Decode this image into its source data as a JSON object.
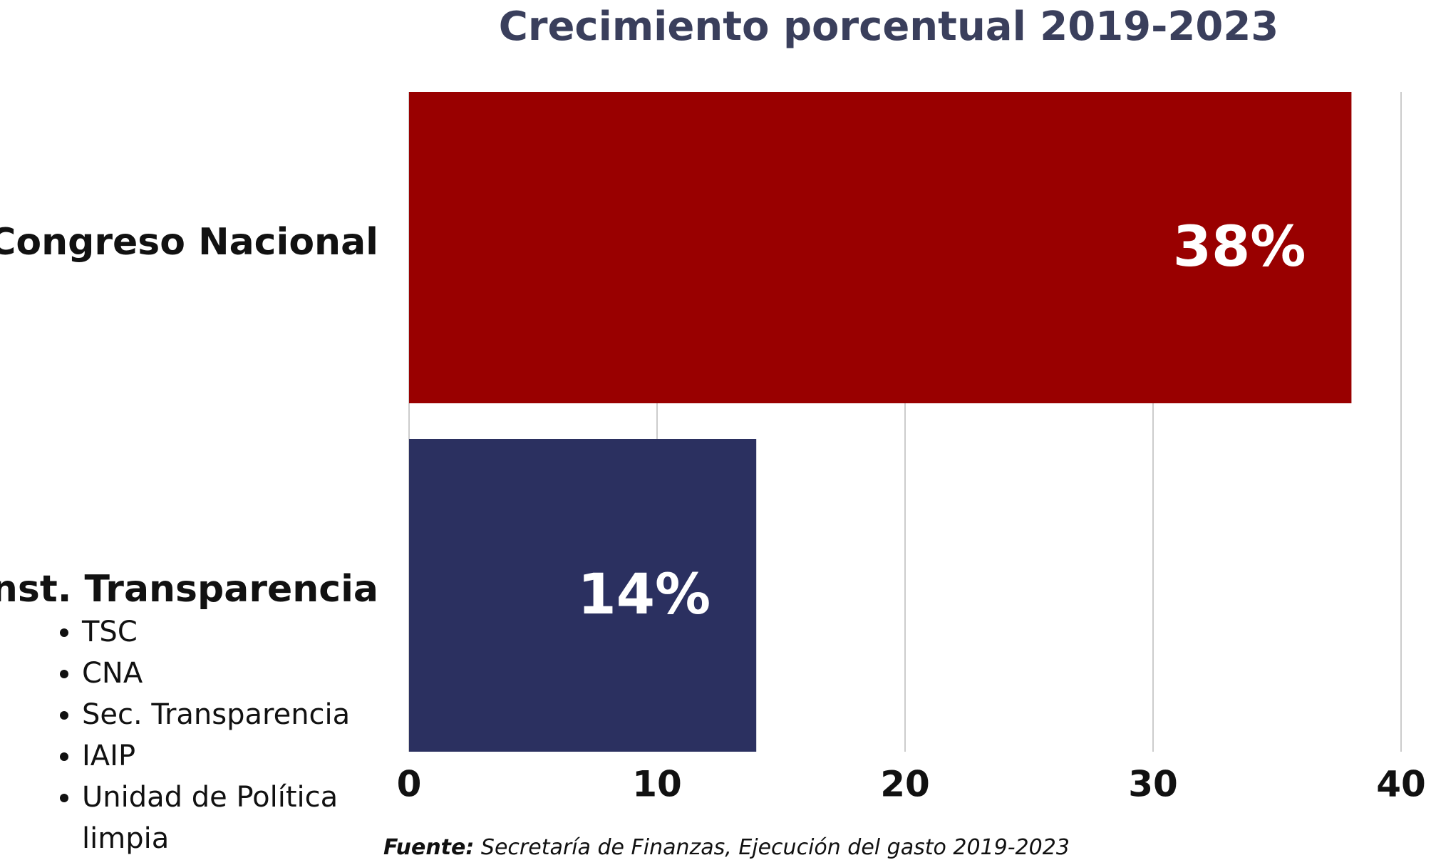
{
  "chart_data": {
    "type": "bar",
    "orientation": "horizontal",
    "title": "Crecimiento porcentual 2019-2023",
    "categories": [
      "Congreso Nacional",
      "Inst. Transparencia"
    ],
    "values": [
      38,
      14
    ],
    "value_labels": [
      "38%",
      "14%"
    ],
    "colors": [
      "#990000",
      "#2b3060"
    ],
    "xlim": [
      0,
      40
    ],
    "xticks": [
      0,
      10,
      20,
      30,
      40
    ],
    "grid": true
  },
  "list": [
    "TSC",
    "CNA",
    "Sec. Transparencia",
    "IAIP",
    "Unidad de Política limpia"
  ],
  "source": {
    "label": "Fuente:",
    "text": "Secretaría de Finanzas, Ejecución del gasto 2019-2023"
  }
}
